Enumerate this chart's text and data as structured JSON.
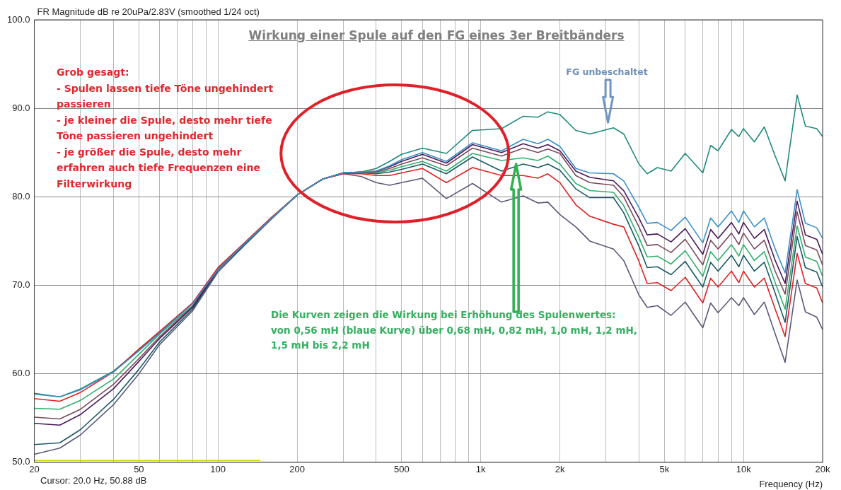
{
  "chart_data": {
    "type": "line",
    "title": "Wirkung einer Spule auf den FG eines 3er Breitbänders",
    "ylabel": "FR Magnitude dB re 20uPa/2.83V (smoothed 1/24 oct)",
    "xlabel": "Frequency (Hz)",
    "annotations": [
      "Grob gesagt:\n- Spulen lassen tiefe Töne ungehindert\npassieren\n- je kleiner die Spule, desto mehr tiefe\nTöne passieren ungehindert\n- je größer die Spule, desto mehr\nerfahren auch tiefe Frequenzen eine\nFilterwirkung",
      "Die Kurven zeigen die Wirkung bei Erhöhung des Spulenwertes:\nvon 0,56 mH (blaue Kurve) über 0,68 mH, 0,82 mH, 1,0 mH, 1,2 mH,\n1,5 mH bis 2,2 mH",
      "FG unbeschaltet",
      "Cursor: 20.0 Hz, 50.88 dB"
    ],
    "log": "x",
    "grid": true,
    "xlim": [
      20,
      20000
    ],
    "ylim": [
      50,
      100
    ],
    "xticks": [
      20,
      {
        "value": 30,
        "label": null
      },
      {
        "value": 40,
        "label": null
      },
      50,
      {
        "value": 60,
        "label": null
      },
      {
        "value": 70,
        "label": null
      },
      {
        "value": 80,
        "label": null
      },
      {
        "value": 90,
        "label": null
      },
      100,
      200,
      {
        "value": 300,
        "label": null
      },
      {
        "value": 400,
        "label": null
      },
      500,
      {
        "value": 600,
        "label": null
      },
      {
        "value": 700,
        "label": null
      },
      {
        "value": 800,
        "label": null
      },
      {
        "value": 900,
        "label": null
      },
      {
        "value": 1000,
        "label": "1k"
      },
      {
        "value": 2000,
        "label": "2k"
      },
      {
        "value": 3000,
        "label": null
      },
      {
        "value": 4000,
        "label": null
      },
      {
        "value": 5000,
        "label": "5k"
      },
      {
        "value": 6000,
        "label": null
      },
      {
        "value": 7000,
        "label": null
      },
      {
        "value": 8000,
        "label": null
      },
      {
        "value": 9000,
        "label": null
      },
      {
        "value": 10000,
        "label": "10k"
      },
      {
        "value": 20000,
        "label": "20k"
      }
    ],
    "yticks": [
      {
        "value": 50,
        "label": "50.0"
      },
      {
        "value": 60,
        "label": "60.0"
      },
      {
        "value": 70,
        "label": "70.0"
      },
      {
        "value": 80,
        "label": "80.0"
      },
      {
        "value": 90,
        "label": "90.0"
      },
      {
        "value": 100,
        "label": "100.0"
      }
    ],
    "x": [
      20,
      25,
      30,
      40,
      50,
      60,
      80,
      100,
      125,
      160,
      200,
      250,
      300,
      350,
      400,
      450,
      500,
      600,
      740,
      930,
      1200,
      1450,
      1650,
      1800,
      2000,
      2300,
      2600,
      3200,
      3500,
      4000,
      4300,
      4700,
      5300,
      6000,
      7000,
      7500,
      8000,
      9000,
      9600,
      10000,
      11000,
      12000,
      13200,
      14400,
      16000,
      17200,
      19000,
      20000
    ],
    "series": [
      {
        "color": "#3a8fc8",
        "values": [
          57.7,
          57.4,
          58.2,
          60.2,
          62.6,
          64.6,
          67.9,
          71.8,
          74.6,
          77.6,
          80.2,
          82.0,
          82.7,
          82.8,
          82.9,
          83.5,
          84.2,
          85.0,
          84.0,
          86.1,
          85.2,
          86.5,
          86.0,
          86.5,
          85.7,
          83.2,
          82.7,
          82.6,
          81.8,
          78.8,
          77.0,
          77.1,
          76.2,
          77.7,
          74.8,
          77.6,
          76.6,
          78.4,
          77.1,
          78.4,
          76.6,
          77.6,
          74.1,
          71.4,
          80.8,
          77.0,
          76.5,
          75.3
        ]
      },
      {
        "color": "#e02020",
        "values": [
          57.2,
          56.9,
          57.9,
          60.2,
          62.8,
          64.8,
          68.0,
          72.0,
          74.7,
          77.7,
          80.2,
          82.0,
          82.6,
          82.6,
          82.4,
          82.4,
          82.7,
          83.2,
          81.6,
          83.3,
          82.4,
          82.4,
          82.1,
          82.6,
          81.6,
          79.1,
          77.8,
          76.9,
          76.6,
          72.7,
          70.2,
          70.3,
          69.4,
          70.9,
          68.0,
          70.8,
          69.8,
          71.6,
          70.3,
          71.6,
          69.8,
          70.8,
          67.3,
          64.2,
          73.6,
          70.2,
          69.7,
          68.0
        ]
      },
      {
        "color": "#1f8a7a",
        "values": [
          57.8,
          57.4,
          58.3,
          60.3,
          62.7,
          64.7,
          68.0,
          71.8,
          74.6,
          77.6,
          80.2,
          82.0,
          82.7,
          82.8,
          83.2,
          84.0,
          84.8,
          85.5,
          84.9,
          87.5,
          87.7,
          89.1,
          89.0,
          89.6,
          89.3,
          87.5,
          87.1,
          87.8,
          87.1,
          83.7,
          82.6,
          83.3,
          82.9,
          84.9,
          82.7,
          85.8,
          85.2,
          87.6,
          86.8,
          87.7,
          86.2,
          87.9,
          84.6,
          81.8,
          91.5,
          88.0,
          87.7,
          86.8
        ]
      },
      {
        "color": "#4a1a5a",
        "values": [
          54.4,
          54.2,
          55.4,
          58.3,
          61.4,
          64.0,
          67.5,
          71.8,
          74.6,
          77.6,
          80.2,
          82.0,
          82.7,
          82.8,
          82.9,
          83.4,
          84.0,
          84.8,
          83.8,
          85.9,
          85.0,
          86.0,
          85.5,
          85.9,
          85.2,
          82.9,
          82.2,
          81.8,
          80.7,
          77.6,
          75.7,
          75.8,
          74.9,
          76.4,
          73.5,
          76.3,
          75.3,
          77.1,
          75.8,
          77.1,
          75.3,
          76.3,
          72.8,
          70.2,
          79.5,
          75.7,
          75.2,
          73.5
        ]
      },
      {
        "color": "#7a4a5e",
        "values": [
          55.1,
          54.9,
          56.0,
          58.8,
          61.7,
          64.2,
          67.6,
          71.8,
          74.6,
          77.6,
          80.2,
          82.0,
          82.7,
          82.7,
          82.8,
          83.2,
          83.7,
          84.4,
          83.5,
          85.5,
          84.6,
          85.5,
          85.0,
          85.4,
          84.9,
          82.4,
          81.6,
          81.3,
          80.0,
          76.6,
          74.5,
          74.6,
          73.7,
          75.2,
          72.3,
          75.1,
          74.1,
          75.9,
          74.6,
          75.9,
          74.1,
          75.1,
          71.6,
          69.0,
          78.3,
          74.5,
          74.0,
          72.3
        ]
      },
      {
        "color": "#2fb06a",
        "values": [
          56.1,
          56.0,
          57.0,
          59.4,
          62.2,
          64.5,
          67.7,
          71.8,
          74.6,
          77.6,
          80.2,
          82.0,
          82.7,
          82.7,
          82.7,
          83.0,
          83.4,
          84.0,
          82.9,
          84.9,
          84.1,
          84.4,
          84.1,
          84.6,
          83.7,
          81.5,
          80.7,
          80.5,
          79.0,
          75.4,
          73.2,
          73.3,
          72.4,
          73.9,
          71.0,
          73.8,
          72.8,
          74.6,
          73.3,
          74.6,
          72.8,
          73.8,
          70.3,
          67.3,
          76.7,
          73.2,
          72.7,
          71.0
        ]
      },
      {
        "color": "#1a5a66",
        "values": [
          52.0,
          52.2,
          53.7,
          57.1,
          60.5,
          63.6,
          67.3,
          71.7,
          74.5,
          77.6,
          80.2,
          82.0,
          82.7,
          82.7,
          82.6,
          82.8,
          83.1,
          83.7,
          82.6,
          84.5,
          82.9,
          83.7,
          83.3,
          83.7,
          83.0,
          80.9,
          79.9,
          79.9,
          78.2,
          74.4,
          72.0,
          72.1,
          71.2,
          72.7,
          69.8,
          72.6,
          71.6,
          73.4,
          72.1,
          73.4,
          71.6,
          72.6,
          69.1,
          65.8,
          75.5,
          72.0,
          71.5,
          69.8
        ]
      },
      {
        "color": "#5a5a78",
        "values": [
          50.9,
          51.6,
          53.1,
          56.5,
          60.0,
          63.3,
          67.1,
          71.5,
          74.4,
          77.5,
          80.2,
          82.0,
          82.6,
          82.3,
          81.6,
          81.3,
          81.6,
          82.1,
          79.8,
          81.5,
          79.4,
          80.1,
          79.3,
          79.4,
          78.0,
          76.6,
          75.0,
          74.1,
          72.8,
          68.9,
          67.5,
          67.7,
          66.6,
          68.1,
          65.2,
          68.0,
          66.9,
          68.6,
          67.7,
          68.6,
          66.7,
          68.1,
          64.5,
          61.3,
          70.6,
          67.0,
          66.4,
          65.0
        ]
      },
      {
        "color": "#d4d400",
        "x": [
          20,
          145
        ],
        "values": [
          50.2,
          50.2
        ]
      }
    ]
  }
}
